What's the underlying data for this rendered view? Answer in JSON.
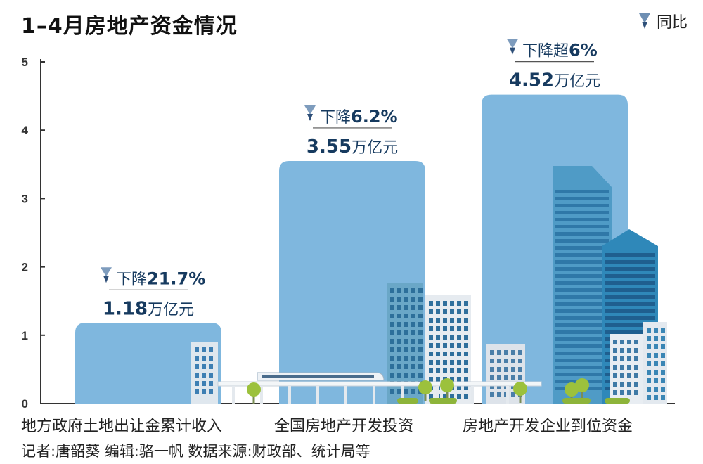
{
  "title": "1–4月房地产资金情况",
  "legend": {
    "label": "同比",
    "icon": "down-arrow-icon"
  },
  "chart_data": {
    "type": "bar",
    "categories": [
      "地方政府土地出让金累计收入",
      "全国房地产开发投资",
      "房地产开发企业到位资金"
    ],
    "values": [
      1.18,
      3.55,
      4.52
    ],
    "value_labels": [
      "1.18",
      "3.55",
      "4.52"
    ],
    "unit": "万亿元",
    "change_labels": [
      {
        "prefix": "下降",
        "value": "21.7%"
      },
      {
        "prefix": "下降",
        "value": "6.2%"
      },
      {
        "prefix": "下降超",
        "value": "6%"
      }
    ],
    "ylim": [
      0,
      5
    ],
    "yticks": [
      0,
      1,
      2,
      3,
      4,
      5
    ],
    "bar_color": "#7fb7de",
    "value_color": "#163a5f"
  },
  "footer": "记者:唐韶葵   编辑:骆一帆   数据来源:财政部、统计局等"
}
